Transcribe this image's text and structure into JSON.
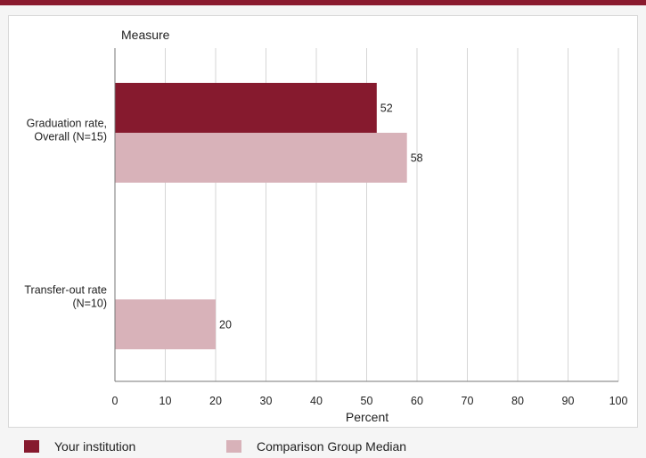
{
  "chart_data": {
    "type": "bar",
    "orientation": "horizontal",
    "category_axis_title": "Measure",
    "xlabel": "Percent",
    "xlim": [
      0,
      100
    ],
    "xticks": [
      0,
      10,
      20,
      30,
      40,
      50,
      60,
      70,
      80,
      90,
      100
    ],
    "grid": true,
    "legend_position": "bottom",
    "categories": [
      {
        "lines": [
          "Graduation rate,",
          "Overall (N=15)"
        ]
      },
      {
        "lines": [
          "Transfer-out rate",
          "(N=10)"
        ]
      }
    ],
    "series": [
      {
        "name": "Your institution",
        "color": "#861a2e",
        "values": [
          52,
          null
        ]
      },
      {
        "name": "Comparison Group Median",
        "color": "#d8b2b9",
        "values": [
          58,
          20
        ]
      }
    ]
  },
  "colors": {
    "accent": "#8a1a2e"
  }
}
